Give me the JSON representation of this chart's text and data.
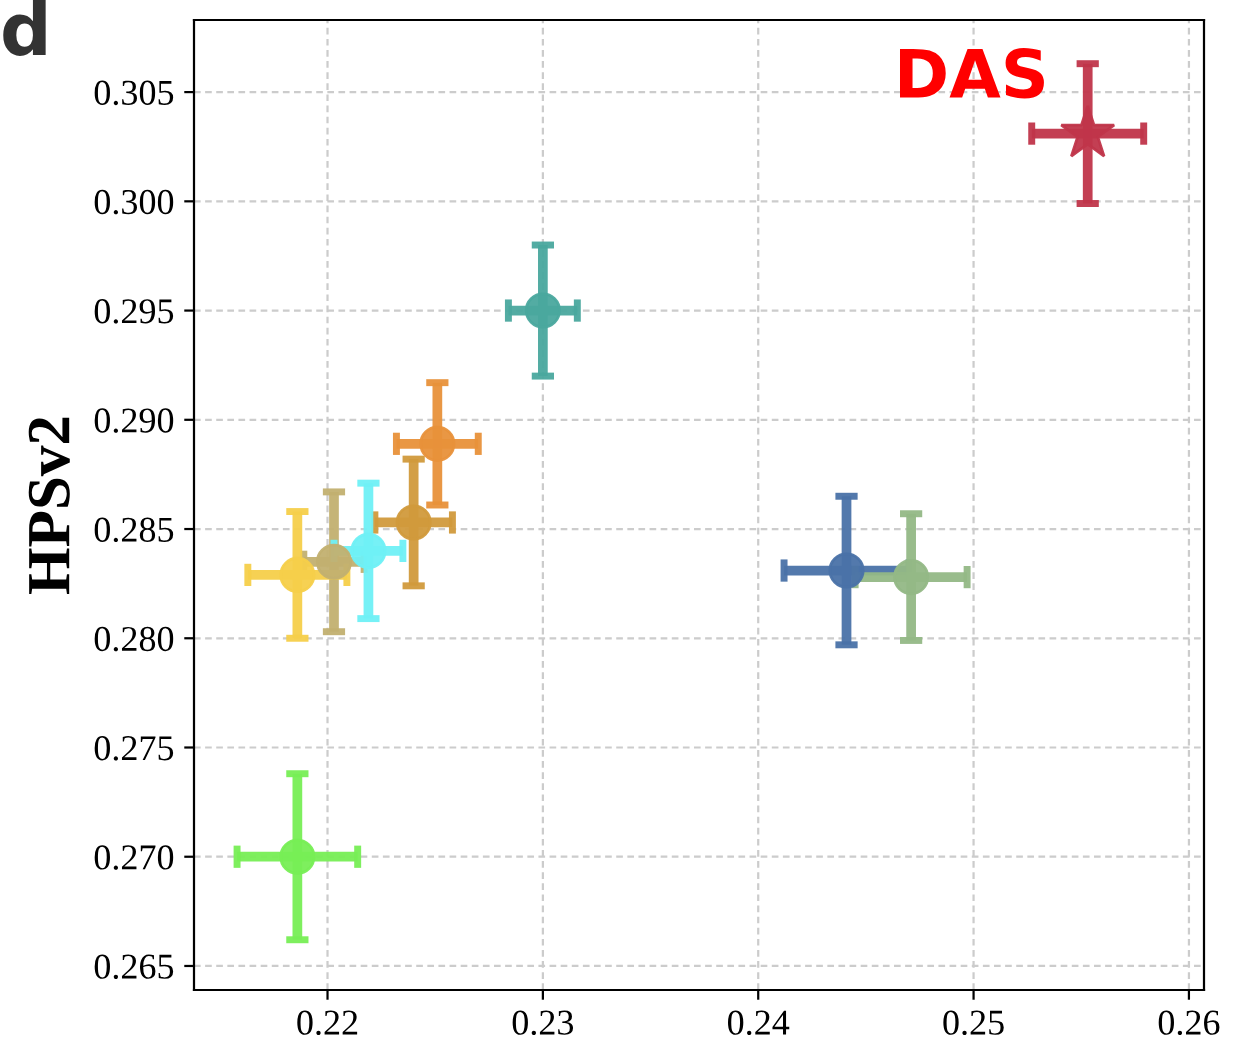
{
  "chart_data": {
    "type": "scatter",
    "ylabel": "HPSv2",
    "annotations": [
      {
        "text": "DAS",
        "x": 0.2553,
        "y": 0.3031
      },
      "d"
    ],
    "xlim": [
      0.2138,
      0.2607
    ],
    "xticks": [
      0.22,
      0.23,
      0.24,
      0.25,
      0.26
    ],
    "ylim": [
      0.2639,
      0.3083
    ],
    "yticks": [
      0.265,
      {
        "value": 0.27,
        "label": "0.270"
      },
      0.275,
      {
        "value": 0.28,
        "label": "0.280"
      },
      0.285,
      {
        "value": 0.29,
        "label": "0.290"
      },
      0.295,
      {
        "value": 0.3,
        "label": "0.300"
      },
      0.305
    ],
    "grid": true,
    "marker": "circle",
    "series": [
      {
        "color": "#c0354a",
        "marker": "star",
        "x": [
          0.2553
        ],
        "values": [
          0.3031
        ],
        "errors": [
          0.0032
        ],
        "xerrors": [
          0.0026
        ]
      },
      {
        "color": "#4aa89e",
        "x": [
          0.23
        ],
        "values": [
          0.295
        ],
        "errors": [
          0.003
        ],
        "xerrors": [
          0.0016
        ]
      },
      {
        "color": "#e8913a",
        "x": [
          0.2251
        ],
        "values": [
          0.2889
        ],
        "errors": [
          0.0028
        ],
        "xerrors": [
          0.0019
        ]
      },
      {
        "color": "#d19a3c",
        "x": [
          0.224
        ],
        "values": [
          0.2853
        ],
        "errors": [
          0.0029
        ],
        "xerrors": [
          0.0018
        ]
      },
      {
        "color": "#c2b070",
        "x": [
          0.2203
        ],
        "values": [
          0.2835
        ],
        "errors": [
          0.0032
        ],
        "xerrors": [
          0.0014
        ]
      },
      {
        "color": "#6ff0f5",
        "x": [
          0.2219
        ],
        "values": [
          0.284
        ],
        "errors": [
          0.0031
        ],
        "xerrors": [
          0.0016
        ]
      },
      {
        "color": "#f5cf4a",
        "x": [
          0.2186
        ],
        "values": [
          0.2829
        ],
        "errors": [
          0.0029
        ],
        "xerrors": [
          0.0023
        ]
      },
      {
        "color": "#77ee55",
        "x": [
          0.2186
        ],
        "values": [
          0.27
        ],
        "errors": [
          0.0038
        ],
        "xerrors": [
          0.0028
        ]
      },
      {
        "color": "#4a72a8",
        "x": [
          0.2441
        ],
        "values": [
          0.2831
        ],
        "errors": [
          0.0034
        ],
        "xerrors": [
          0.0029
        ]
      },
      {
        "color": "#93b886",
        "x": [
          0.2471
        ],
        "values": [
          0.2828
        ],
        "errors": [
          0.0029
        ],
        "xerrors": [
          0.0026
        ]
      }
    ]
  }
}
